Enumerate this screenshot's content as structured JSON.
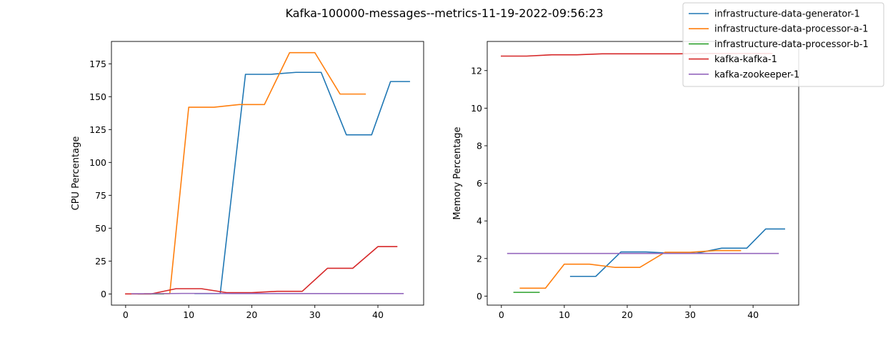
{
  "title": "Kafka-100000-messages--metrics-11-19-2022-09:56:23",
  "legend": {
    "placement": "top-right",
    "entries": [
      {
        "label": "infrastructure-data-generator-1",
        "color": "#1f77b4"
      },
      {
        "label": "infrastructure-data-processor-a-1",
        "color": "#ff7f0e"
      },
      {
        "label": "infrastructure-data-processor-b-1",
        "color": "#2ca02c"
      },
      {
        "label": "kafka-kafka-1",
        "color": "#d62728"
      },
      {
        "label": "kafka-zookeeper-1",
        "color": "#9467bd"
      }
    ]
  },
  "chart_data": [
    {
      "type": "line",
      "ylabel": "CPU Percentage",
      "xlabel": "",
      "xlim": [
        -2.25,
        47.25
      ],
      "ylim": [
        -8.5,
        192
      ],
      "xticks": [
        0,
        10,
        20,
        30,
        40
      ],
      "yticks": [
        0,
        25,
        50,
        75,
        100,
        125,
        150,
        175
      ],
      "grid": false,
      "series": [
        {
          "name": "infrastructure-data-generator-1",
          "color": "#1f77b4",
          "x": [
            11,
            15,
            19,
            23,
            27,
            31,
            35,
            39,
            42,
            45
          ],
          "y": [
            0.3,
            0.3,
            167,
            167,
            168.5,
            168.5,
            121,
            121,
            161.5,
            161.5
          ]
        },
        {
          "name": "infrastructure-data-processor-a-1",
          "color": "#ff7f0e",
          "x": [
            3,
            7,
            10,
            14,
            18,
            22,
            26,
            30,
            34,
            38
          ],
          "y": [
            0.2,
            0.2,
            142,
            142,
            144,
            144,
            183.5,
            183.5,
            152,
            152
          ]
        },
        {
          "name": "infrastructure-data-processor-b-1",
          "color": "#2ca02c",
          "x": [
            2,
            6
          ],
          "y": [
            0,
            0
          ]
        },
        {
          "name": "kafka-kafka-1",
          "color": "#d62728",
          "x": [
            0,
            4,
            8,
            12,
            16,
            20,
            24,
            28,
            32,
            36,
            40,
            43
          ],
          "y": [
            0,
            0,
            4,
            4,
            1,
            1,
            2,
            2,
            19.5,
            19.5,
            36,
            36
          ]
        },
        {
          "name": "kafka-zookeeper-1",
          "color": "#9467bd",
          "x": [
            1,
            5,
            9,
            13,
            17,
            21,
            25,
            29,
            33,
            37,
            41,
            44
          ],
          "y": [
            0.2,
            0.2,
            0.4,
            0.4,
            0.3,
            0.3,
            0.3,
            0.3,
            0.3,
            0.3,
            0.3,
            0.3
          ]
        }
      ]
    },
    {
      "type": "line",
      "ylabel": "Memory Percentage",
      "xlabel": "",
      "xlim": [
        -2.25,
        47.25
      ],
      "ylim": [
        -0.48,
        13.55
      ],
      "xticks": [
        0,
        10,
        20,
        30,
        40
      ],
      "yticks": [
        0,
        2,
        4,
        6,
        8,
        10,
        12
      ],
      "grid": false,
      "series": [
        {
          "name": "infrastructure-data-generator-1",
          "color": "#1f77b4",
          "x": [
            11,
            15,
            19,
            23,
            27,
            31,
            35,
            39,
            42,
            45
          ],
          "y": [
            1.05,
            1.05,
            2.35,
            2.35,
            2.28,
            2.28,
            2.55,
            2.55,
            3.57,
            3.57
          ]
        },
        {
          "name": "infrastructure-data-processor-a-1",
          "color": "#ff7f0e",
          "x": [
            3,
            7,
            10,
            14,
            18,
            22,
            26,
            30,
            34,
            38
          ],
          "y": [
            0.42,
            0.42,
            1.7,
            1.7,
            1.53,
            1.53,
            2.33,
            2.33,
            2.42,
            2.42
          ]
        },
        {
          "name": "infrastructure-data-processor-b-1",
          "color": "#2ca02c",
          "x": [
            2,
            6
          ],
          "y": [
            0.2,
            0.2
          ]
        },
        {
          "name": "kafka-kafka-1",
          "color": "#d62728",
          "x": [
            0,
            4,
            8,
            12,
            16,
            20,
            24,
            28,
            32,
            36,
            40,
            43
          ],
          "y": [
            12.77,
            12.77,
            12.84,
            12.84,
            12.89,
            12.89,
            12.89,
            12.89,
            12.91,
            12.91,
            12.91,
            12.91
          ]
        },
        {
          "name": "kafka-zookeeper-1",
          "color": "#9467bd",
          "x": [
            1,
            5,
            9,
            13,
            17,
            21,
            25,
            29,
            33,
            37,
            41,
            44
          ],
          "y": [
            2.27,
            2.27,
            2.27,
            2.27,
            2.27,
            2.27,
            2.27,
            2.27,
            2.27,
            2.27,
            2.27,
            2.27
          ]
        }
      ]
    }
  ]
}
